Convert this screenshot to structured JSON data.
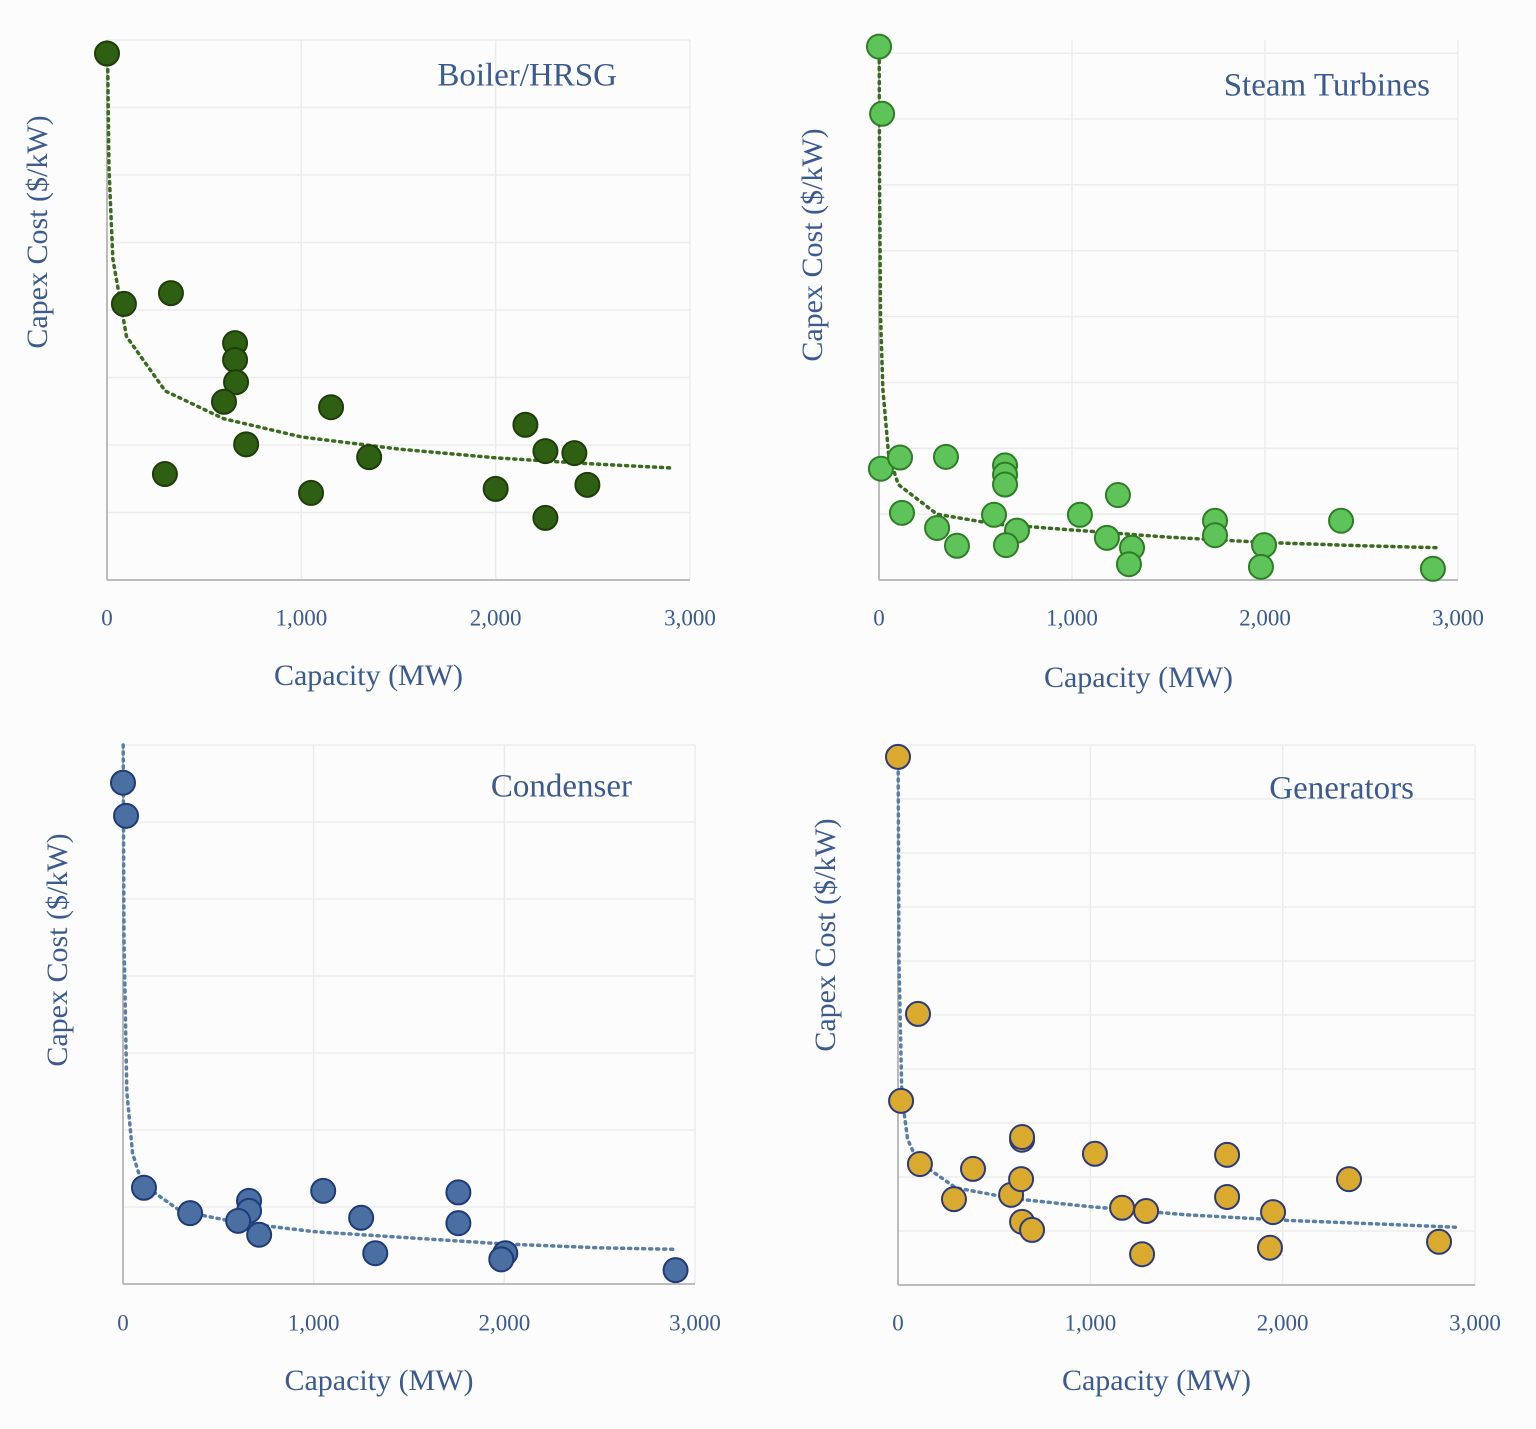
{
  "chart_data": [
    {
      "type": "scatter",
      "title": "Boiler/HRSG",
      "x_label": "Capacity (MW)",
      "y_label": "Capex Cost ($/kW)",
      "x": [
        0,
        87,
        329,
        659,
        659,
        664,
        602,
        1153,
        716,
        298,
        1349,
        1050,
        2153,
        2256,
        2405,
        2472,
        2000,
        2256
      ],
      "y": [
        7.8,
        4.09,
        4.25,
        3.51,
        3.26,
        2.93,
        2.64,
        2.56,
        2.01,
        1.57,
        1.82,
        1.29,
        2.3,
        1.91,
        1.88,
        1.41,
        1.35,
        0.92
      ],
      "color": "#2f5f12",
      "edge_color": "#1e3d0a",
      "trend": {
        "x": [
          4,
          10,
          30,
          100,
          300,
          600,
          1000,
          1500,
          2000,
          2500,
          2900
        ],
        "y": [
          7.56,
          6.12,
          4.76,
          3.61,
          2.8,
          2.39,
          2.12,
          1.94,
          1.81,
          1.72,
          1.66
        ],
        "color": "#3a6b1e",
        "style": "dotted"
      },
      "xlim": [
        0,
        3000
      ],
      "ylim": [
        0,
        8
      ],
      "xticks": [
        0,
        {
          "value": 1000,
          "label": "1,000"
        },
        {
          "value": 2000,
          "label": "2,000"
        },
        {
          "value": 3000,
          "label": "3,000"
        }
      ],
      "yticks": [
        0,
        1,
        2,
        3,
        4,
        5,
        6,
        7,
        8
      ],
      "ytick_labels": false,
      "grid": true
    },
    {
      "type": "scatter",
      "title": "Steam Turbines",
      "x_label": "Capacity (MW)",
      "y_label": "Capex Cost ($/kW)",
      "x": [
        0,
        16,
        10,
        109,
        119,
        347,
        301,
        404,
        596,
        653,
        653,
        653,
        715,
        658,
        1041,
        1238,
        1181,
        1311,
        1295,
        1741,
        1741,
        1995,
        1979,
        2394,
        2870
      ],
      "y": [
        8.1,
        7.08,
        1.69,
        1.86,
        1.02,
        1.87,
        0.79,
        0.52,
        0.99,
        1.74,
        1.6,
        1.45,
        0.75,
        0.53,
        0.99,
        1.29,
        0.64,
        0.49,
        0.24,
        0.9,
        0.68,
        0.53,
        0.2,
        0.9,
        0.17
      ],
      "color": "#5ec45a",
      "edge_color": "#2e7d24",
      "trend": {
        "x": [
          1,
          3,
          8,
          20,
          50,
          100,
          300,
          600,
          1000,
          1500,
          2000,
          2500,
          2900
        ],
        "y": [
          8.1,
          6,
          4,
          2.9,
          1.9,
          1.45,
          1.0,
          0.85,
          0.76,
          0.65,
          0.57,
          0.52,
          0.49
        ],
        "color": "#3a6b1e",
        "style": "dotted"
      },
      "xlim": [
        0,
        3000
      ],
      "ylim": [
        0,
        8.2
      ],
      "xticks": [
        0,
        {
          "value": 1000,
          "label": "1,000"
        },
        {
          "value": 2000,
          "label": "2,000"
        },
        {
          "value": 3000,
          "label": "3,000"
        }
      ],
      "yticks": [
        0,
        1,
        2,
        3,
        4,
        5,
        6,
        7,
        8
      ],
      "ytick_labels": false,
      "grid": true
    },
    {
      "type": "scatter",
      "title": "Condenser",
      "x_label": "Capacity (MW)",
      "y_label": "Capex Cost ($/kW)",
      "x": [
        0,
        16,
        110,
        352,
        661,
        661,
        604,
        714,
        1050,
        1249,
        1323,
        1759,
        1759,
        2005,
        1984,
        2898
      ],
      "y": [
        6.51,
        6.08,
        1.25,
        0.92,
        1.08,
        0.95,
        0.82,
        0.64,
        1.21,
        0.86,
        0.4,
        1.19,
        0.79,
        0.4,
        0.32,
        0.18
      ],
      "color": "#4a6fa0",
      "edge_color": "#1f3a7a",
      "trend": {
        "x": [
          1,
          5,
          20,
          50,
          100,
          300,
          600,
          1000,
          1500,
          2000,
          2500,
          2900
        ],
        "y": [
          7,
          4.5,
          2.5,
          1.7,
          1.3,
          0.95,
          0.8,
          0.68,
          0.6,
          0.52,
          0.47,
          0.45
        ],
        "color": "#5a7fa5",
        "style": "dotted"
      },
      "xlim": [
        0,
        3000
      ],
      "ylim": [
        0,
        7
      ],
      "xticks": [
        0,
        {
          "value": 1000,
          "label": "1,000"
        },
        {
          "value": 2000,
          "label": "2,000"
        },
        {
          "value": 3000,
          "label": "3,000"
        }
      ],
      "yticks": [
        0,
        1,
        2,
        3,
        4,
        5,
        6,
        7
      ],
      "ytick_labels": false,
      "grid": true
    },
    {
      "type": "scatter",
      "title": "Generators",
      "x_label": "Capacity (MW)",
      "y_label": "Capex Cost ($/kW)",
      "x": [
        0,
        104,
        16,
        114,
        291,
        390,
        588,
        645,
        645,
        640,
        645,
        697,
        1024,
        1165,
        1290,
        1269,
        1711,
        1711,
        1950,
        1934,
        2345,
        2813
      ],
      "y": [
        9.78,
        5.02,
        3.41,
        2.24,
        1.59,
        2.15,
        1.67,
        2.69,
        2.74,
        1.96,
        1.17,
        1.02,
        2.43,
        1.43,
        1.37,
        0.57,
        2.41,
        1.63,
        1.35,
        0.69,
        1.96,
        0.8
      ],
      "color": "#d9aa2e",
      "edge_color": "#2b3a7a",
      "trend": {
        "x": [
          1,
          5,
          20,
          50,
          100,
          300,
          600,
          1000,
          1500,
          2000,
          2500,
          2900
        ],
        "y": [
          9.5,
          6,
          3.5,
          2.7,
          2.3,
          1.8,
          1.6,
          1.45,
          1.3,
          1.2,
          1.13,
          1.07
        ],
        "color": "#5a7fa5",
        "style": "dotted"
      },
      "xlim": [
        0,
        3000
      ],
      "ylim": [
        0,
        10
      ],
      "xticks": [
        0,
        {
          "value": 1000,
          "label": "1,000"
        },
        {
          "value": 2000,
          "label": "2,000"
        },
        {
          "value": 3000,
          "label": "3,000"
        }
      ],
      "yticks": [
        0,
        1,
        2,
        3,
        4,
        5,
        6,
        7,
        8,
        9,
        10
      ],
      "ytick_labels": false,
      "grid": true
    }
  ]
}
